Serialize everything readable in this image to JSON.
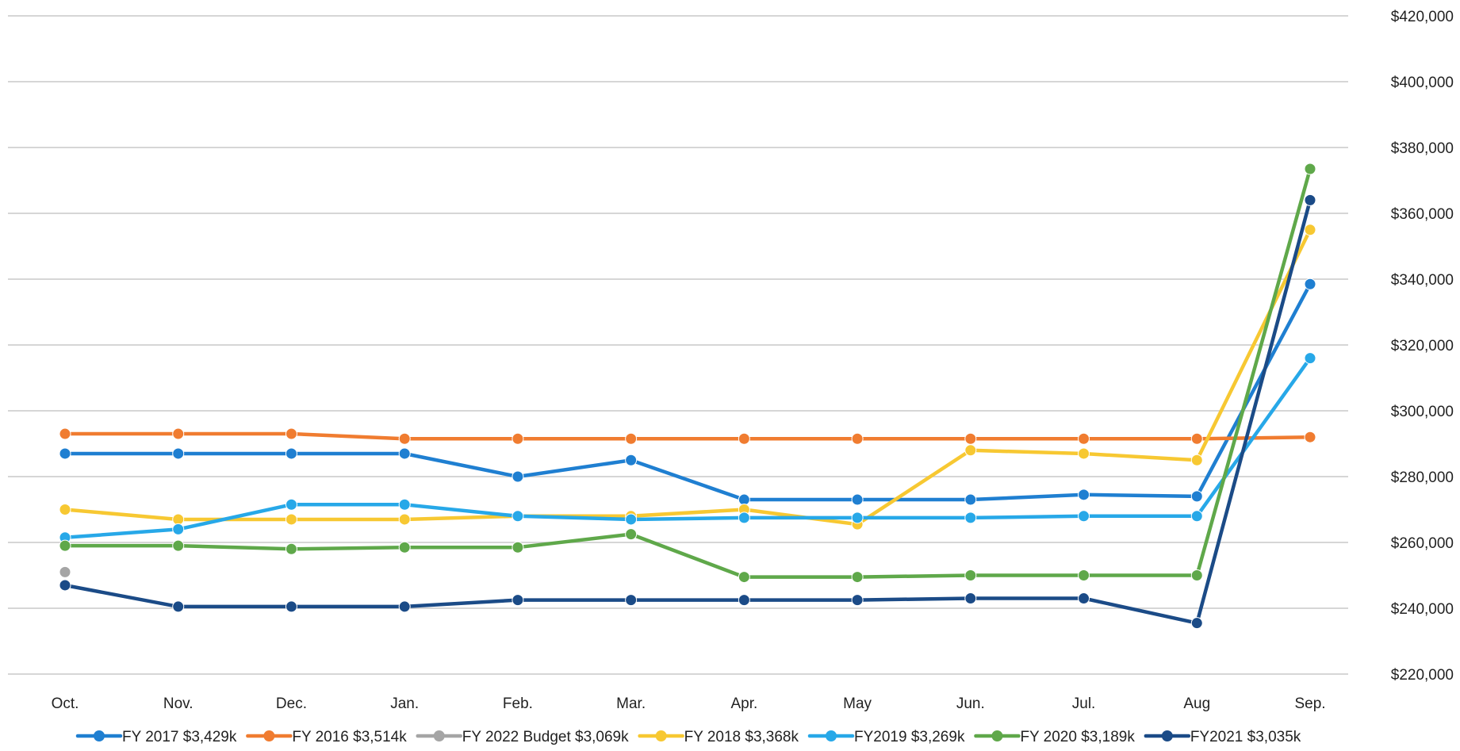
{
  "chart_data": {
    "type": "line",
    "title": "",
    "xlabel": "",
    "ylabel": "",
    "categories": [
      "Oct.",
      "Nov.",
      "Dec.",
      "Jan.",
      "Feb.",
      "Mar.",
      "Apr.",
      "May",
      "Jun.",
      "Jul.",
      "Aug",
      "Sep."
    ],
    "ylim": [
      220000,
      420000
    ],
    "yticks": [
      220000,
      240000,
      260000,
      280000,
      300000,
      320000,
      340000,
      360000,
      380000,
      400000,
      420000
    ],
    "ytick_labels": [
      "$220,000",
      "$240,000",
      "$260,000",
      "$280,000",
      "$300,000",
      "$320,000",
      "$340,000",
      "$360,000",
      "$380,000",
      "$400,000",
      "$420,000"
    ],
    "y_axis_side": "right",
    "grid": true,
    "legend_position": "bottom",
    "series": [
      {
        "name": "FY 2017 $3,429k",
        "color": "#1f7fd1",
        "values": [
          287000,
          287000,
          287000,
          287000,
          280000,
          285000,
          273000,
          273000,
          273000,
          274500,
          274000,
          338500
        ]
      },
      {
        "name": "FY 2016 $3,514k",
        "color": "#f07c30",
        "values": [
          293000,
          293000,
          293000,
          291500,
          291500,
          291500,
          291500,
          291500,
          291500,
          291500,
          291500,
          292000
        ]
      },
      {
        "name": "FY 2022  Budget $3,069k",
        "color": "#a5a5a5",
        "values": [
          251000,
          null,
          null,
          null,
          null,
          null,
          null,
          null,
          null,
          null,
          null,
          null
        ]
      },
      {
        "name": "FY 2018 $3,368k",
        "color": "#f7c832",
        "values": [
          270000,
          267000,
          267000,
          267000,
          268000,
          268000,
          270000,
          265500,
          288000,
          287000,
          285000,
          355000
        ]
      },
      {
        "name": "FY2019 $3,269k",
        "color": "#27a8e8",
        "values": [
          261500,
          264000,
          271500,
          271500,
          268000,
          267000,
          267500,
          267500,
          267500,
          268000,
          268000,
          316000
        ]
      },
      {
        "name": "FY 2020 $3,189k",
        "color": "#5fa84a",
        "values": [
          259000,
          259000,
          258000,
          258500,
          258500,
          262500,
          249500,
          249500,
          250000,
          250000,
          250000,
          373500
        ]
      },
      {
        "name": "FY2021 $3,035k",
        "color": "#1b4b87",
        "values": [
          247000,
          240500,
          240500,
          240500,
          242500,
          242500,
          242500,
          242500,
          243000,
          243000,
          235500,
          364000
        ]
      }
    ]
  }
}
